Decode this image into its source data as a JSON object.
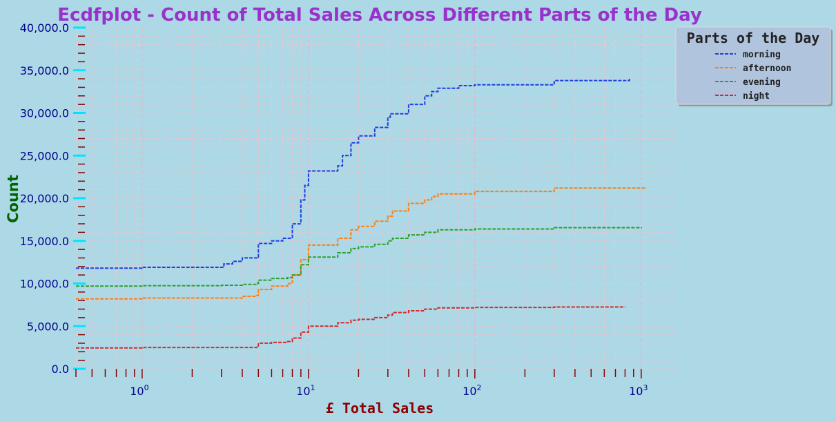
{
  "chart_data": {
    "type": "line",
    "title": "Ecdfplot - Count of Total Sales Across Different Parts of the Day",
    "xlabel": "£ Total Sales",
    "ylabel": "Count",
    "xscale": "log",
    "xlim": [
      0.4,
      1600
    ],
    "ylim": [
      0,
      40000
    ],
    "yticks": [
      "0.0",
      "5,000.0",
      "10,000.0",
      "15,000.0",
      "20,000.0",
      "25,000.0",
      "30,000.0",
      "35,000.0",
      "40,000.0"
    ],
    "ytick_values": [
      0,
      5000,
      10000,
      15000,
      20000,
      25000,
      30000,
      35000,
      40000
    ],
    "xticks": [
      {
        "base": "10",
        "exp": "0",
        "value": 1
      },
      {
        "base": "10",
        "exp": "1",
        "value": 10
      },
      {
        "base": "10",
        "exp": "2",
        "value": 100
      },
      {
        "base": "10",
        "exp": "3",
        "value": 1000
      }
    ],
    "grid": true,
    "legend": {
      "title": "Parts of the Day",
      "placement": "outside-top-right"
    },
    "series": [
      {
        "name": "morning",
        "color": "#1f3fe0",
        "x": [
          0.4,
          1,
          3,
          3.1,
          3.5,
          4,
          4.9,
          5,
          6,
          7,
          7.9,
          8,
          9,
          9.5,
          10,
          15,
          16,
          18,
          20,
          25,
          30,
          31,
          40,
          50,
          55,
          60,
          80,
          100,
          300,
          850
        ],
        "y": [
          11800,
          11900,
          11900,
          12300,
          12600,
          13000,
          13100,
          14700,
          15000,
          15300,
          15400,
          17000,
          19800,
          21500,
          23200,
          23800,
          25000,
          26500,
          27300,
          28300,
          29500,
          29900,
          31000,
          32000,
          32500,
          32900,
          33200,
          33300,
          33800,
          34000
        ]
      },
      {
        "name": "afternoon",
        "color": "#ff7f0e",
        "x": [
          0.4,
          1,
          3,
          4,
          4.9,
          5,
          6,
          7.5,
          8,
          9,
          10,
          15,
          18,
          20,
          25,
          30,
          32,
          40,
          50,
          55,
          60,
          100,
          300,
          1050
        ],
        "y": [
          8200,
          8300,
          8300,
          8500,
          8600,
          9300,
          9700,
          10000,
          11000,
          12800,
          14500,
          15300,
          16300,
          16700,
          17300,
          17900,
          18500,
          19400,
          19800,
          20200,
          20500,
          20800,
          21200,
          21300
        ]
      },
      {
        "name": "evening",
        "color": "#2ca02c",
        "x": [
          0.4,
          1,
          3,
          4,
          4.9,
          5,
          6,
          7.5,
          8,
          9,
          10,
          15,
          18,
          20,
          25,
          30,
          32,
          40,
          50,
          60,
          100,
          300,
          1000
        ],
        "y": [
          9700,
          9750,
          9800,
          9900,
          10000,
          10400,
          10600,
          10700,
          11000,
          12200,
          13100,
          13600,
          14100,
          14300,
          14600,
          15000,
          15300,
          15700,
          16000,
          16300,
          16400,
          16550,
          16600
        ]
      },
      {
        "name": "night",
        "color": "#d62728",
        "x": [
          0.4,
          1,
          3,
          4.9,
          5,
          6,
          7.5,
          8,
          9,
          10,
          15,
          18,
          20,
          25,
          30,
          32,
          40,
          50,
          60,
          100,
          300,
          800
        ],
        "y": [
          2450,
          2500,
          2500,
          2700,
          3000,
          3100,
          3200,
          3600,
          4300,
          5000,
          5400,
          5700,
          5800,
          6000,
          6300,
          6600,
          6800,
          7000,
          7150,
          7200,
          7250,
          7250
        ]
      }
    ]
  }
}
